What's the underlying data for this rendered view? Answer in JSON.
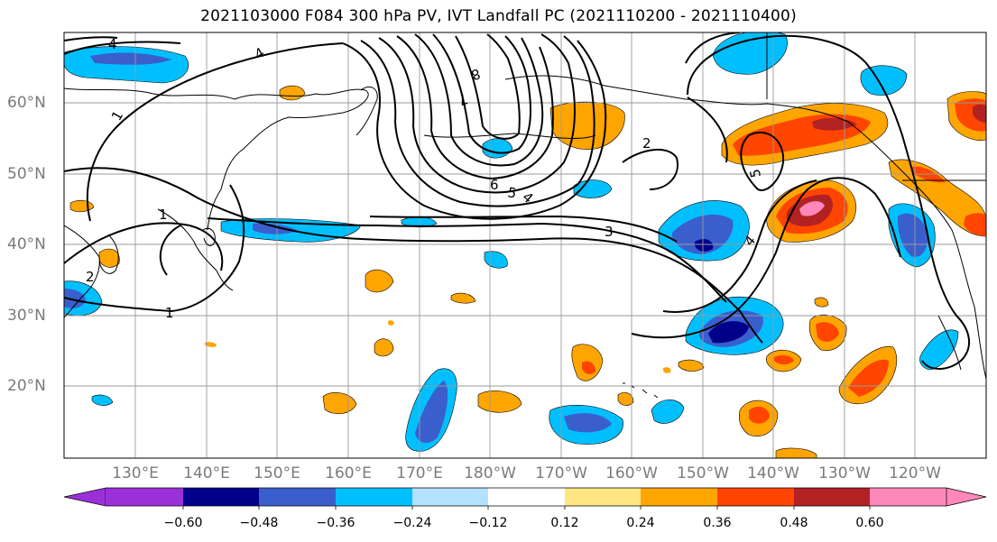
{
  "title": "2021103000 F084 300 hPa PV, IVT Landfall PC (2021110200 - 2021110400)",
  "lat_labels": [
    "60°N",
    "50°N",
    "40°N",
    "30°N",
    "20°N"
  ],
  "lon_labels": [
    "130°E",
    "140°E",
    "150°E",
    "160°E",
    "170°E",
    "180°W",
    "170°W",
    "160°W",
    "150°W",
    "140°W",
    "130°W",
    "120°W"
  ],
  "contour_labels": [
    "4",
    "4",
    "1",
    "1",
    "1",
    "2",
    "7",
    "8",
    "2",
    "6",
    "5",
    "4",
    "3",
    "4",
    "5"
  ],
  "colorbar": {
    "tick_labels": [
      "−0.60",
      "−0.48",
      "−0.36",
      "−0.24",
      "−0.12",
      "0.12",
      "0.24",
      "0.36",
      "0.48",
      "0.60"
    ],
    "colors": [
      "#9b30d9",
      "#00008b",
      "#3a5fcd",
      "#00bfff",
      "#b2e2ff",
      "#ffffff",
      "#ffe680",
      "#ffa500",
      "#ff4500",
      "#b22222",
      "#ff88bb",
      "#ffffff"
    ]
  }
}
